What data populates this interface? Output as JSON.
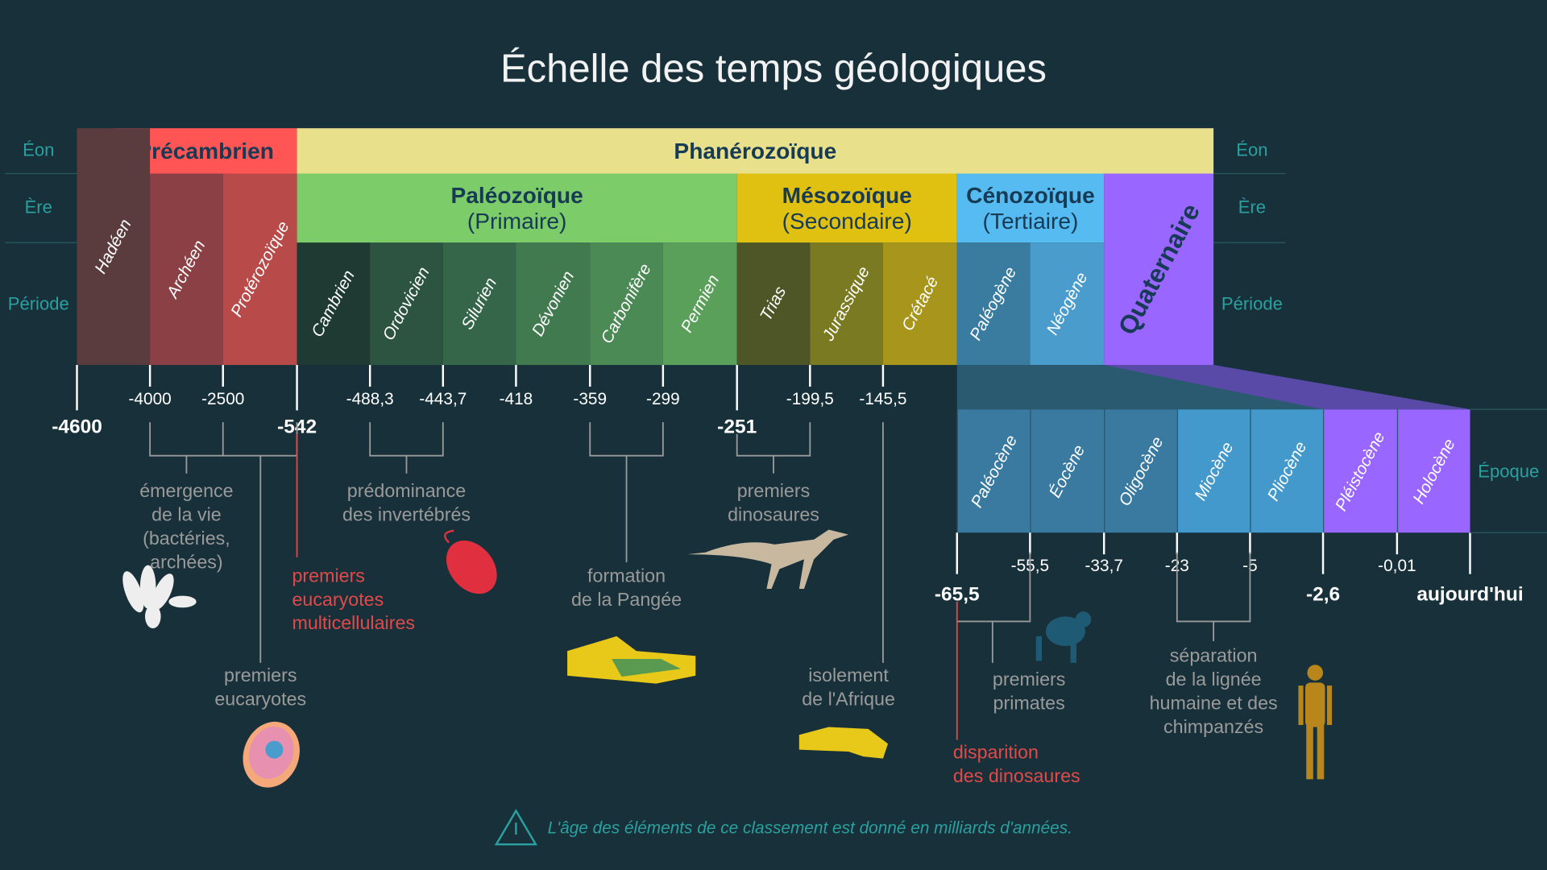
{
  "title": "Échelle des temps géologiques",
  "row_labels": {
    "eon": "Éon",
    "era": "Ère",
    "period": "Période",
    "epoch": "Époque"
  },
  "eons": [
    {
      "name": "Précambrien",
      "color": "#ff5555"
    },
    {
      "name": "Phanérozoïque",
      "color": "#e8e08a"
    }
  ],
  "eras": [
    {
      "name": "Paléozoïque",
      "sub": "(Primaire)",
      "color": "#7ccc6a"
    },
    {
      "name": "Mésozoïque",
      "sub": "(Secondaire)",
      "color": "#e0c010"
    },
    {
      "name": "Cénozoïque",
      "sub": "(Tertiaire)",
      "color": "#55bbf0"
    },
    {
      "name": "Quaternaire",
      "color": "#9966ff"
    }
  ],
  "periods": [
    "Hadéen",
    "Archéen",
    "Protérozoïque",
    "Cambrien",
    "Ordovicien",
    "Silurien",
    "Dévonien",
    "Carbonifère",
    "Permien",
    "Trias",
    "Jurassique",
    "Crétacé",
    "Paléogène",
    "Néogène"
  ],
  "epochs": [
    "Paléocène",
    "Éocène",
    "Oligocène",
    "Miocène",
    "Pliocène",
    "Pléistocène",
    "Holocène"
  ],
  "ages_main": [
    "-4600",
    "-4000",
    "-2500",
    "-542",
    "-488,3",
    "-443,7",
    "-418",
    "-359",
    "-299",
    "-251",
    "-199,5",
    "-145,5"
  ],
  "ages_epoch": [
    "-65,5",
    "-55,5",
    "-33,7",
    "-23",
    "-5",
    "-2,6",
    "-0,01",
    "aujourd'hui"
  ],
  "events": {
    "life": "émergence\nde la vie\n(bactéries,\narchées)",
    "eukaryotes": "premiers\neucaryotes",
    "multicell": "premiers\neucaryotes\nmulticellulaires",
    "invertebrates": "prédominance\ndes invertébrés",
    "pangea": "formation\nde la Pangée",
    "dinosaurs": "premiers\ndinosaures",
    "africa": "isolement\nde l'Afrique",
    "extinction": "disparition\ndes dinosaures",
    "primates": "premiers\nprimates",
    "human": "séparation\nde la lignée\nhumaine et des\nchimpanzés"
  },
  "footnote": "L'âge des éléments de ce classement est donné en milliards d'années."
}
